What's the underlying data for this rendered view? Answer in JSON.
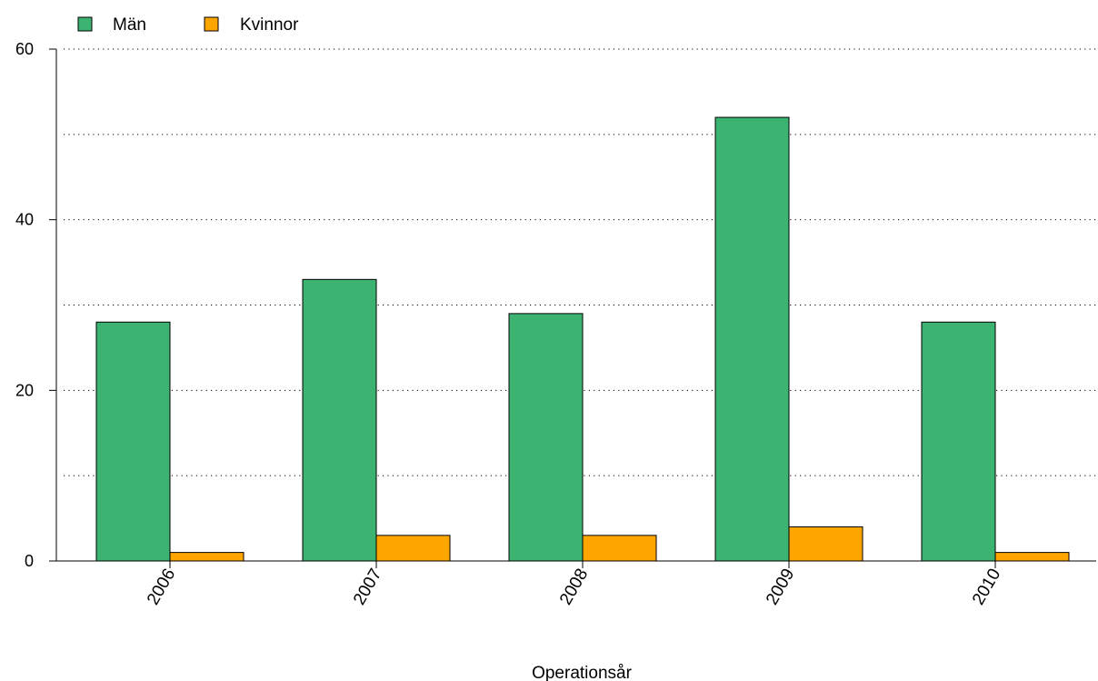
{
  "chart_data": {
    "type": "bar",
    "categories": [
      "2006",
      "2007",
      "2008",
      "2009",
      "2010"
    ],
    "series": [
      {
        "name": "Män",
        "values": [
          28,
          33,
          29,
          52,
          28
        ],
        "color": "#3cb371"
      },
      {
        "name": "Kvinnor",
        "values": [
          1,
          3,
          3,
          4,
          1
        ],
        "color": "#ffa500"
      }
    ],
    "title": "",
    "xlabel": "Operationsår",
    "ylabel": "",
    "ylim": [
      0,
      60
    ],
    "yticks": [
      "0",
      "20",
      "40",
      "60"
    ],
    "grid": true,
    "legend_position": "top-left"
  }
}
